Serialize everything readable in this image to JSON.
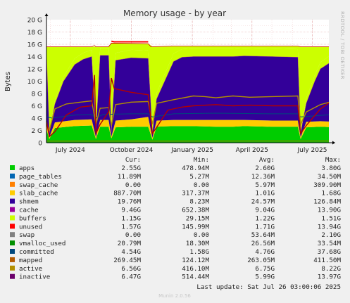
{
  "chart_data": {
    "type": "area",
    "title": "Memory usage - by year",
    "ylabel": "Bytes",
    "side_label": "RRDTOOL / TOBI OETIKER",
    "footer": "Munin 2.0.56",
    "last_update": "Last update: Sat Jul 26 03:00:06 2025",
    "ylim": [
      0,
      20
    ],
    "y_unit": "G",
    "y_ticks": [
      {
        "v": 0,
        "label": "0"
      },
      {
        "v": 2,
        "label": "2 G"
      },
      {
        "v": 4,
        "label": "4 G"
      },
      {
        "v": 6,
        "label": "6 G"
      },
      {
        "v": 8,
        "label": "8 G"
      },
      {
        "v": 10,
        "label": "10 G"
      },
      {
        "v": 12,
        "label": "12 G"
      },
      {
        "v": 14,
        "label": "14 G"
      },
      {
        "v": 16,
        "label": "16 G"
      },
      {
        "v": 18,
        "label": "18 G"
      },
      {
        "v": 20,
        "label": "20 G"
      }
    ],
    "x_range": [
      "2024-05-26",
      "2025-07-26"
    ],
    "x_ticks": [
      {
        "date": "2024-07-01",
        "label": "July 2024"
      },
      {
        "date": "2024-10-01",
        "label": "October 2024"
      },
      {
        "date": "2025-01-01",
        "label": "January 2025"
      },
      {
        "date": "2025-04-01",
        "label": "April 2025"
      },
      {
        "date": "2025-07-01",
        "label": "July 2025"
      }
    ],
    "grid": true,
    "legend_headers": {
      "cur": "Cur:",
      "min": "Min:",
      "avg": "Avg:",
      "max": "Max:"
    },
    "legend": [
      {
        "name": "apps",
        "color": "#00cc00",
        "cur": "2.55G",
        "min": "478.94M",
        "avg": "2.60G",
        "max": "3.80G"
      },
      {
        "name": "page_tables",
        "color": "#0066b3",
        "cur": "11.89M",
        "min": "5.27M",
        "avg": "12.36M",
        "max": "34.50M"
      },
      {
        "name": "swap_cache",
        "color": "#ff8000",
        "cur": "0.00",
        "min": "0.00",
        "avg": "5.97M",
        "max": "309.90M"
      },
      {
        "name": "slab_cache",
        "color": "#ffcc00",
        "cur": "887.70M",
        "min": "317.37M",
        "avg": "1.01G",
        "max": "1.68G"
      },
      {
        "name": "shmem",
        "color": "#330099",
        "cur": "19.76M",
        "min": "8.23M",
        "avg": "24.57M",
        "max": "126.84M"
      },
      {
        "name": "cache",
        "color": "#990099",
        "cur": "9.46G",
        "min": "652.38M",
        "avg": "9.04G",
        "max": "13.90G"
      },
      {
        "name": "buffers",
        "color": "#ccff00",
        "cur": "1.15G",
        "min": "29.15M",
        "avg": "1.22G",
        "max": "1.51G"
      },
      {
        "name": "unused",
        "color": "#ff0000",
        "cur": "1.57G",
        "min": "145.99M",
        "avg": "1.71G",
        "max": "13.94G"
      },
      {
        "name": "swap",
        "color": "#808080",
        "cur": "0.00",
        "min": "0.00",
        "avg": "53.64M",
        "max": "2.10G"
      },
      {
        "name": "vmalloc_used",
        "color": "#008f00",
        "cur": "20.79M",
        "min": "18.30M",
        "avg": "26.56M",
        "max": "33.54M"
      },
      {
        "name": "committed",
        "color": "#00487d",
        "cur": "4.54G",
        "min": "1.58G",
        "avg": "4.76G",
        "max": "37.68G"
      },
      {
        "name": "mapped",
        "color": "#b35a00",
        "cur": "269.45M",
        "min": "124.12M",
        "avg": "263.05M",
        "max": "411.50M"
      },
      {
        "name": "active",
        "color": "#b38f00",
        "cur": "6.56G",
        "min": "416.10M",
        "avg": "6.75G",
        "max": "8.22G"
      },
      {
        "name": "inactive",
        "color": "#6b006b",
        "cur": "6.47G",
        "min": "514.44M",
        "avg": "5.99G",
        "max": "13.97G"
      }
    ],
    "areas": {
      "apps": [
        [
          0,
          2.2
        ],
        [
          0.01,
          0.6
        ],
        [
          0.03,
          2.4
        ],
        [
          0.1,
          2.7
        ],
        [
          0.16,
          2.8
        ],
        [
          0.175,
          0.6
        ],
        [
          0.19,
          2.6
        ],
        [
          0.22,
          2.6
        ],
        [
          0.23,
          0.7
        ],
        [
          0.245,
          2.5
        ],
        [
          0.3,
          2.6
        ],
        [
          0.36,
          2.6
        ],
        [
          0.375,
          0.5
        ],
        [
          0.39,
          2.6
        ],
        [
          0.45,
          2.7
        ],
        [
          0.52,
          2.7
        ],
        [
          0.6,
          2.6
        ],
        [
          0.66,
          2.6
        ],
        [
          0.7,
          2.7
        ],
        [
          0.8,
          2.6
        ],
        [
          0.89,
          2.6
        ],
        [
          0.9,
          0.6
        ],
        [
          0.92,
          2.5
        ],
        [
          0.97,
          2.6
        ],
        [
          1,
          2.55
        ]
      ],
      "slab_cache": [
        [
          0,
          0.9
        ],
        [
          0.01,
          0.3
        ],
        [
          0.03,
          0.9
        ],
        [
          0.1,
          1.0
        ],
        [
          0.16,
          1.0
        ],
        [
          0.175,
          0.3
        ],
        [
          0.19,
          1.1
        ],
        [
          0.22,
          1.1
        ],
        [
          0.23,
          0.3
        ],
        [
          0.245,
          1.1
        ],
        [
          0.3,
          1.2
        ],
        [
          0.36,
          1.6
        ],
        [
          0.375,
          0.3
        ],
        [
          0.39,
          1.0
        ],
        [
          0.45,
          1.0
        ],
        [
          0.52,
          1.0
        ],
        [
          0.6,
          1.1
        ],
        [
          0.66,
          1.1
        ],
        [
          0.7,
          1.0
        ],
        [
          0.8,
          1.0
        ],
        [
          0.89,
          1.0
        ],
        [
          0.9,
          0.3
        ],
        [
          0.92,
          0.9
        ],
        [
          0.97,
          0.9
        ],
        [
          1,
          0.89
        ]
      ],
      "cache": [
        [
          0,
          11.5
        ],
        [
          0.01,
          0.7
        ],
        [
          0.03,
          3.0
        ],
        [
          0.06,
          6.5
        ],
        [
          0.1,
          9.0
        ],
        [
          0.13,
          9.8
        ],
        [
          0.16,
          10.2
        ],
        [
          0.175,
          0.7
        ],
        [
          0.19,
          10.5
        ],
        [
          0.22,
          10.5
        ],
        [
          0.23,
          0.7
        ],
        [
          0.245,
          9.8
        ],
        [
          0.3,
          10.0
        ],
        [
          0.36,
          9.5
        ],
        [
          0.375,
          0.7
        ],
        [
          0.39,
          3.5
        ],
        [
          0.42,
          6.5
        ],
        [
          0.45,
          9.5
        ],
        [
          0.48,
          10.2
        ],
        [
          0.52,
          10.3
        ],
        [
          0.6,
          10.3
        ],
        [
          0.66,
          10.3
        ],
        [
          0.7,
          10.4
        ],
        [
          0.8,
          10.4
        ],
        [
          0.89,
          10.3
        ],
        [
          0.9,
          0.7
        ],
        [
          0.92,
          3.0
        ],
        [
          0.95,
          6.5
        ],
        [
          0.97,
          8.5
        ],
        [
          1,
          9.46
        ]
      ],
      "buffers": [
        [
          0,
          0.5
        ],
        [
          0.01,
          0.05
        ],
        [
          0.03,
          0.6
        ],
        [
          0.1,
          1.0
        ],
        [
          0.16,
          1.1
        ],
        [
          0.175,
          0.05
        ],
        [
          0.19,
          1.2
        ],
        [
          0.22,
          1.2
        ],
        [
          0.23,
          0.05
        ],
        [
          0.245,
          1.2
        ],
        [
          0.3,
          1.3
        ],
        [
          0.36,
          1.3
        ],
        [
          0.375,
          0.05
        ],
        [
          0.39,
          1.0
        ],
        [
          0.45,
          1.3
        ],
        [
          0.52,
          1.3
        ],
        [
          0.6,
          1.3
        ],
        [
          0.66,
          1.3
        ],
        [
          0.7,
          1.3
        ],
        [
          0.8,
          1.3
        ],
        [
          0.89,
          1.3
        ],
        [
          0.9,
          0.05
        ],
        [
          0.92,
          0.8
        ],
        [
          0.97,
          1.1
        ],
        [
          1,
          1.15
        ]
      ]
    },
    "total_line": [
      [
        0,
        15.6
      ],
      [
        0.16,
        15.6
      ],
      [
        0.17,
        15.8
      ],
      [
        0.175,
        15.6
      ],
      [
        0.22,
        15.6
      ],
      [
        0.23,
        16.2
      ],
      [
        0.36,
        16.1
      ],
      [
        0.37,
        15.6
      ],
      [
        0.45,
        15.7
      ],
      [
        0.89,
        15.7
      ],
      [
        0.9,
        15.6
      ],
      [
        1,
        15.6
      ]
    ],
    "lines": {
      "committed": [
        [
          0,
          4.2
        ],
        [
          0.02,
          4.0
        ],
        [
          0.1,
          4.5
        ],
        [
          0.16,
          4.6
        ],
        [
          0.175,
          4.0
        ],
        [
          0.2,
          4.6
        ],
        [
          0.3,
          4.7
        ],
        [
          0.36,
          4.7
        ],
        [
          0.375,
          4.2
        ],
        [
          0.45,
          4.7
        ],
        [
          0.6,
          4.8
        ],
        [
          0.8,
          4.7
        ],
        [
          0.89,
          4.7
        ],
        [
          0.9,
          4.2
        ],
        [
          1,
          4.54
        ]
      ],
      "mapped": [
        [
          0,
          0.25
        ],
        [
          1,
          0.27
        ]
      ],
      "active": [
        [
          0,
          3.0
        ],
        [
          0.01,
          2.0
        ],
        [
          0.03,
          5.5
        ],
        [
          0.07,
          6.3
        ],
        [
          0.12,
          6.6
        ],
        [
          0.16,
          6.8
        ],
        [
          0.175,
          3.0
        ],
        [
          0.19,
          5.6
        ],
        [
          0.22,
          5.7
        ],
        [
          0.23,
          2.8
        ],
        [
          0.245,
          6.2
        ],
        [
          0.3,
          6.6
        ],
        [
          0.36,
          6.7
        ],
        [
          0.375,
          3.0
        ],
        [
          0.39,
          6.4
        ],
        [
          0.45,
          7.0
        ],
        [
          0.52,
          7.6
        ],
        [
          0.56,
          7.5
        ],
        [
          0.6,
          7.3
        ],
        [
          0.66,
          7.6
        ],
        [
          0.72,
          7.4
        ],
        [
          0.8,
          7.5
        ],
        [
          0.89,
          7.6
        ],
        [
          0.9,
          3.0
        ],
        [
          0.92,
          5.0
        ],
        [
          0.97,
          6.2
        ],
        [
          1,
          6.56
        ]
      ],
      "inactive": [
        [
          0,
          3.5
        ],
        [
          0.01,
          1.0
        ],
        [
          0.03,
          1.8
        ],
        [
          0.07,
          4.5
        ],
        [
          0.12,
          5.8
        ],
        [
          0.16,
          6.0
        ],
        [
          0.17,
          11.0
        ],
        [
          0.175,
          1.5
        ],
        [
          0.19,
          3.0
        ],
        [
          0.22,
          5.0
        ],
        [
          0.23,
          10.5
        ],
        [
          0.24,
          8.8
        ],
        [
          0.3,
          8.2
        ],
        [
          0.36,
          7.8
        ],
        [
          0.375,
          1.5
        ],
        [
          0.39,
          2.5
        ],
        [
          0.43,
          5.3
        ],
        [
          0.48,
          5.8
        ],
        [
          0.52,
          6.0
        ],
        [
          0.6,
          6.2
        ],
        [
          0.66,
          6.0
        ],
        [
          0.72,
          6.1
        ],
        [
          0.8,
          6.0
        ],
        [
          0.89,
          6.0
        ],
        [
          0.9,
          1.5
        ],
        [
          0.92,
          2.8
        ],
        [
          0.97,
          5.5
        ],
        [
          1,
          6.47
        ]
      ],
      "unused_spike": [
        [
          0.23,
          16.5
        ],
        [
          0.24,
          16.4
        ],
        [
          0.36,
          16.4
        ]
      ]
    }
  }
}
